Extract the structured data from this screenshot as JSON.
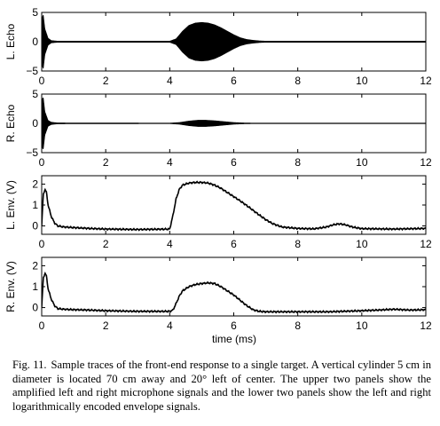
{
  "figure": {
    "x_label": "time (ms)",
    "panels": [
      {
        "ylabel": "L. Echo",
        "yticks": [
          -5,
          0,
          5
        ],
        "ylim": [
          -5,
          5
        ],
        "xlim": [
          0,
          12
        ],
        "xticks": [
          0,
          2,
          4,
          6,
          8,
          10,
          12
        ]
      },
      {
        "ylabel": "R. Echo",
        "yticks": [
          -5,
          0,
          5
        ],
        "ylim": [
          -5,
          5
        ],
        "xlim": [
          0,
          12
        ],
        "xticks": [
          0,
          2,
          4,
          6,
          8,
          10,
          12
        ]
      },
      {
        "ylabel": "L. Env. (V)",
        "yticks": [
          0,
          1,
          2
        ],
        "ylim": [
          -0.4,
          2.4
        ],
        "xlim": [
          0,
          12
        ],
        "xticks": [
          0,
          2,
          4,
          6,
          8,
          10,
          12
        ]
      },
      {
        "ylabel": "R. Env. (V)",
        "yticks": [
          0,
          1,
          2
        ],
        "ylim": [
          -0.4,
          2.4
        ],
        "xlim": [
          0,
          12
        ],
        "xticks": [
          0,
          2,
          4,
          6,
          8,
          10,
          12
        ]
      }
    ]
  },
  "chart_data": [
    {
      "type": "line",
      "xlabel": "",
      "ylabel": "L. Echo",
      "xlim": [
        0,
        12
      ],
      "ylim": [
        -5,
        5
      ],
      "envelope": {
        "x": [
          0,
          0.02,
          0.05,
          0.1,
          0.2,
          0.3,
          0.5,
          4.0,
          4.2,
          4.4,
          4.6,
          4.8,
          5.0,
          5.2,
          5.4,
          5.6,
          5.8,
          6.0,
          6.2,
          6.4,
          6.6,
          6.8,
          7.0,
          12
        ],
        "y": [
          0.2,
          4.2,
          4.6,
          2.2,
          0.6,
          0.2,
          0.1,
          0.1,
          0.5,
          1.8,
          2.8,
          3.2,
          3.3,
          3.2,
          2.9,
          2.4,
          1.8,
          1.2,
          0.7,
          0.4,
          0.25,
          0.15,
          0.1,
          0.1
        ]
      }
    },
    {
      "type": "line",
      "xlabel": "",
      "ylabel": "R. Echo",
      "xlim": [
        0,
        12
      ],
      "ylim": [
        -5,
        5
      ],
      "envelope": {
        "x": [
          0,
          0.02,
          0.05,
          0.1,
          0.2,
          0.3,
          0.5,
          4.0,
          4.3,
          4.6,
          4.9,
          5.1,
          5.4,
          5.7,
          6.0,
          6.3,
          6.6,
          12
        ],
        "y": [
          0.2,
          4.2,
          4.4,
          2.0,
          0.5,
          0.2,
          0.08,
          0.05,
          0.15,
          0.4,
          0.55,
          0.55,
          0.45,
          0.3,
          0.15,
          0.08,
          0.05,
          0.05
        ]
      }
    },
    {
      "type": "line",
      "xlabel": "",
      "ylabel": "L. Env. (V)",
      "xlim": [
        0,
        12
      ],
      "ylim": [
        -0.4,
        2.4
      ],
      "x": [
        0,
        0.05,
        0.1,
        0.15,
        0.2,
        0.3,
        0.4,
        0.5,
        0.7,
        1.0,
        1.5,
        2.0,
        3.0,
        4.0,
        4.1,
        4.2,
        4.3,
        4.4,
        4.6,
        4.8,
        5.0,
        5.2,
        5.4,
        5.6,
        5.8,
        6.0,
        6.2,
        6.4,
        6.6,
        6.8,
        7.0,
        7.2,
        7.5,
        8.0,
        8.5,
        8.9,
        9.1,
        9.3,
        9.5,
        9.7,
        10.0,
        11.0,
        12.0
      ],
      "y": [
        0.0,
        1.5,
        1.75,
        1.6,
        1.0,
        0.45,
        0.15,
        0.0,
        -0.05,
        -0.08,
        -0.12,
        -0.15,
        -0.17,
        -0.15,
        0.5,
        1.3,
        1.75,
        1.95,
        2.05,
        2.08,
        2.08,
        2.05,
        1.95,
        1.8,
        1.6,
        1.4,
        1.2,
        0.98,
        0.75,
        0.52,
        0.3,
        0.12,
        -0.05,
        -0.12,
        -0.14,
        -0.05,
        0.05,
        0.1,
        0.05,
        -0.05,
        -0.13,
        -0.15,
        -0.12
      ]
    },
    {
      "type": "line",
      "xlabel": "time (ms)",
      "ylabel": "R. Env. (V)",
      "xlim": [
        0,
        12
      ],
      "ylim": [
        -0.4,
        2.4
      ],
      "x": [
        0,
        0.05,
        0.1,
        0.15,
        0.2,
        0.3,
        0.4,
        0.5,
        0.7,
        1.0,
        1.5,
        2.0,
        3.0,
        4.0,
        4.1,
        4.2,
        4.3,
        4.4,
        4.6,
        4.8,
        5.0,
        5.2,
        5.4,
        5.6,
        5.8,
        6.0,
        6.2,
        6.4,
        6.6,
        6.8,
        7.0,
        8.0,
        9.0,
        10.0,
        10.5,
        11.0,
        11.5,
        12.0
      ],
      "y": [
        0.0,
        1.4,
        1.65,
        1.5,
        0.9,
        0.4,
        0.1,
        -0.05,
        -0.08,
        -0.1,
        -0.12,
        -0.15,
        -0.18,
        -0.18,
        -0.12,
        0.2,
        0.55,
        0.8,
        1.0,
        1.1,
        1.15,
        1.18,
        1.15,
        1.0,
        0.8,
        0.6,
        0.35,
        0.1,
        -0.1,
        -0.18,
        -0.2,
        -0.2,
        -0.2,
        -0.15,
        -0.12,
        -0.08,
        -0.12,
        -0.1
      ]
    }
  ],
  "caption": {
    "label": "Fig. 11.",
    "text": "Sample traces of the front-end response to a single target. A vertical cylinder 5 cm in diameter is located 70 cm away and 20° left of center. The upper two panels show the amplified left and right microphone signals and the lower two panels show the left and right logarithmically encoded envelope signals."
  }
}
